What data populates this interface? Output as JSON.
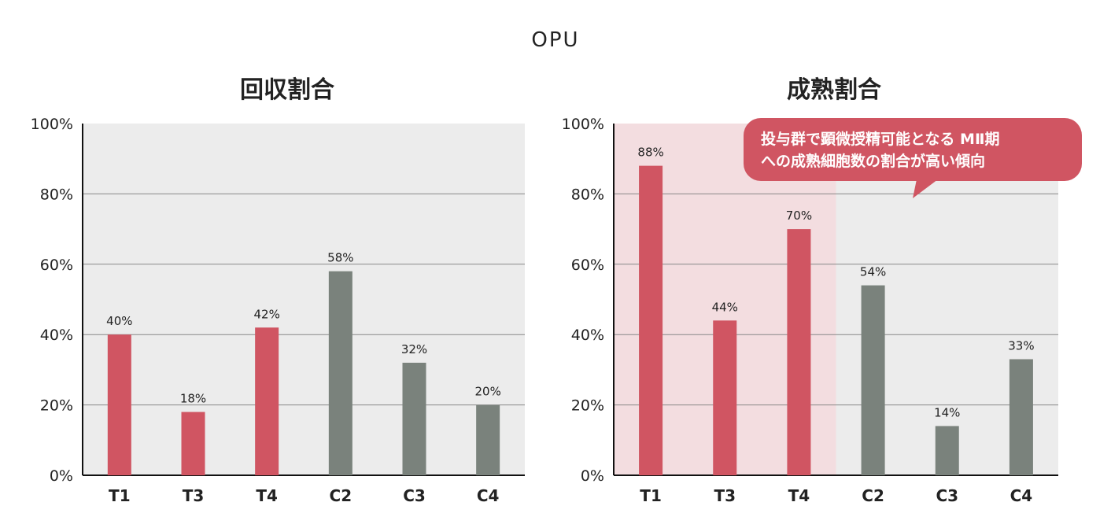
{
  "title": "OPU",
  "colors": {
    "treatment": "#d05562",
    "control": "#7a827c",
    "panel_bg": "#ececec",
    "highlight_bg": "#f3dde0",
    "gridline": "#888888",
    "callout": "#d05562"
  },
  "chart_data": [
    {
      "type": "bar",
      "title": "回収割合",
      "categories": [
        "T1",
        "T3",
        "T4",
        "C2",
        "C3",
        "C4"
      ],
      "values": [
        40,
        18,
        42,
        58,
        32,
        20
      ],
      "value_labels": [
        "40%",
        "18%",
        "42%",
        "58%",
        "32%",
        "20%"
      ],
      "groups": [
        "treatment",
        "treatment",
        "treatment",
        "control",
        "control",
        "control"
      ],
      "ylim": [
        0,
        100
      ],
      "yticks": [
        "0%",
        "20%",
        "40%",
        "60%",
        "80%",
        "100%"
      ],
      "grid": true
    },
    {
      "type": "bar",
      "title": "成熟割合",
      "categories": [
        "T1",
        "T3",
        "T4",
        "C2",
        "C3",
        "C4"
      ],
      "values": [
        88,
        44,
        70,
        54,
        14,
        33
      ],
      "value_labels": [
        "88%",
        "44%",
        "70%",
        "54%",
        "14%",
        "33%"
      ],
      "groups": [
        "treatment",
        "treatment",
        "treatment",
        "control",
        "control",
        "control"
      ],
      "ylim": [
        0,
        100
      ],
      "yticks": [
        "0%",
        "20%",
        "40%",
        "60%",
        "80%",
        "100%"
      ],
      "grid": true,
      "highlight_categories": [
        "T1",
        "T3",
        "T4"
      ],
      "annotation": [
        "投与群で顕微授精可能となる MⅡ期",
        "への成熟細胞数の割合が高い傾向"
      ]
    }
  ]
}
